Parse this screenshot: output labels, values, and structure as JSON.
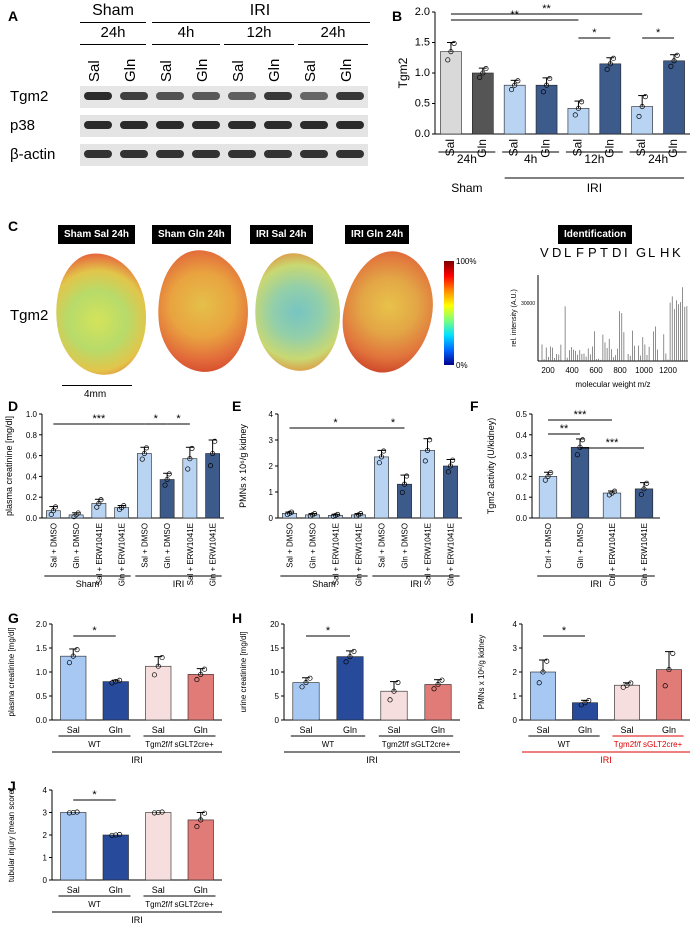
{
  "panel_labels": {
    "A": "A",
    "B": "B",
    "C": "C",
    "D": "D",
    "E": "E",
    "F": "F",
    "G": "G",
    "H": "H",
    "I": "I",
    "J": "J"
  },
  "blot": {
    "group_sham": "Sham",
    "group_iri": "IRI",
    "times": [
      "24h",
      "4h",
      "12h",
      "24h"
    ],
    "lanes": [
      "Sal",
      "Gln",
      "Sal",
      "Gln",
      "Sal",
      "Gln",
      "Sal",
      "Gln"
    ],
    "rows": [
      "Tgm2",
      "p38",
      "β-actin"
    ],
    "tgm2_intensity": [
      0.9,
      0.75,
      0.6,
      0.55,
      0.5,
      0.8,
      0.45,
      0.8
    ]
  },
  "msi": {
    "titles": [
      "Sham Sal 24h",
      "Sham Gln 24h",
      "IRI Sal 24h",
      "IRI Gln 24h",
      "Identification"
    ],
    "row_label": "Tgm2",
    "scale_bar": "4mm",
    "colorbar_top": "100%",
    "colorbar_bottom": "0%",
    "peptide": [
      "V",
      "D",
      "L",
      "F",
      "P",
      "T",
      "D",
      "I",
      "G",
      "L",
      "H",
      "K"
    ],
    "spec_ylabel": "rel. intensity (A.U.)",
    "spec_xlabel": "molecular weight m/z",
    "spec_y_tick": "30000",
    "spec_x_ticks": [
      "200",
      "400",
      "600",
      "800",
      "1000",
      "1200"
    ]
  },
  "chart_data": [
    {
      "id": "B",
      "type": "bar",
      "ylabel": "Tgm2",
      "ylim": [
        0,
        2.0
      ],
      "yticks": [
        "0.0",
        "0.5",
        "1.0",
        "1.5",
        "2.0"
      ],
      "categories": [
        "Sal",
        "Gln",
        "Sal",
        "Gln",
        "Sal",
        "Gln",
        "Sal",
        "Gln"
      ],
      "values": [
        1.35,
        1.0,
        0.8,
        0.8,
        0.42,
        1.15,
        0.45,
        1.2
      ],
      "errors": [
        0.15,
        0.08,
        0.08,
        0.12,
        0.12,
        0.1,
        0.18,
        0.1
      ],
      "groups": [
        {
          "label": "24h",
          "sub": "Sham"
        },
        {
          "label": "4h"
        },
        {
          "label": "12h",
          "sub": "IRI"
        },
        {
          "label": "24h"
        }
      ],
      "colors": [
        "#d9d9d9",
        "#555555",
        "#b9d3f3",
        "#3c5a8a",
        "#b9d3f3",
        "#3c5a8a",
        "#b9d3f3",
        "#3c5a8a"
      ],
      "sig": [
        "**",
        "**",
        "*",
        "*"
      ]
    },
    {
      "id": "D",
      "type": "bar",
      "ylabel": "plasma creatinine [mg/dl]",
      "ylim": [
        0,
        1.0
      ],
      "yticks": [
        "0.0",
        "0.2",
        "0.4",
        "0.6",
        "0.8",
        "1.0"
      ],
      "categories": [
        "Sal + DMSO",
        "Gln + DMSO",
        "Sal + ERW1041E",
        "Gln + ERW1041E",
        "Sal + DMSO",
        "Gln + DMSO",
        "Sal + ERW1041E",
        "Gln + ERW1041E"
      ],
      "values": [
        0.07,
        0.03,
        0.14,
        0.1,
        0.62,
        0.37,
        0.57,
        0.62
      ],
      "errors": [
        0.04,
        0.02,
        0.04,
        0.02,
        0.06,
        0.06,
        0.11,
        0.13
      ],
      "groups": [
        {
          "label": "Sham"
        },
        {
          "label": "IRI"
        }
      ],
      "sig": [
        "***",
        "*",
        "*"
      ]
    },
    {
      "id": "E",
      "type": "bar",
      "ylabel": "PMNs x 10⁶/g kidney",
      "ylim": [
        0,
        4
      ],
      "yticks": [
        "0",
        "1",
        "2",
        "3",
        "4"
      ],
      "categories": [
        "Sal + DMSO",
        "Gln + DMSO",
        "Sal + ERW1041E",
        "Gln + ERW1041E",
        "Sal + DMSO",
        "Gln + DMSO",
        "Sal + ERW1041E",
        "Gln + ERW1041E"
      ],
      "values": [
        0.18,
        0.12,
        0.1,
        0.12,
        2.35,
        1.3,
        2.6,
        2.0
      ],
      "errors": [
        0.05,
        0.05,
        0.04,
        0.05,
        0.25,
        0.35,
        0.45,
        0.25
      ],
      "groups": [
        {
          "label": "Sham"
        },
        {
          "label": "IRI"
        }
      ],
      "sig": [
        "*",
        "*"
      ]
    },
    {
      "id": "F",
      "type": "bar",
      "ylabel": "Tgm2 activity (U/kidney)",
      "ylim": [
        0,
        0.5
      ],
      "yticks": [
        "0.0",
        "0.1",
        "0.2",
        "0.3",
        "0.4",
        "0.5"
      ],
      "categories": [
        "Ctrl + DMSO",
        "Gln + DMSO",
        "Ctrl + ERW1041E",
        "Gln + ERW1041E"
      ],
      "values": [
        0.2,
        0.34,
        0.12,
        0.14
      ],
      "errors": [
        0.02,
        0.04,
        0.01,
        0.03
      ],
      "groups": [
        {
          "label": "IRI"
        }
      ],
      "sig": [
        "***",
        "**",
        "***"
      ]
    },
    {
      "id": "G",
      "type": "bar",
      "ylabel": "plasma creatinine [mg/dl]",
      "ylim": [
        0,
        2.0
      ],
      "yticks": [
        "0.0",
        "0.5",
        "1.0",
        "1.5",
        "2.0"
      ],
      "categories": [
        "Sal",
        "Gln",
        "Sal",
        "Gln"
      ],
      "values": [
        1.33,
        0.8,
        1.12,
        0.95
      ],
      "errors": [
        0.15,
        0.03,
        0.2,
        0.12
      ],
      "groups": [
        {
          "label": "WT"
        },
        {
          "label": "Tgm2f/f sGLT2cre+"
        }
      ],
      "bottom_label": "IRI",
      "sig": [
        "*"
      ]
    },
    {
      "id": "H",
      "type": "bar",
      "ylabel": "urine creatinine [mg/dl]",
      "ylim": [
        0,
        20
      ],
      "yticks": [
        "0",
        "5",
        "10",
        "15",
        "20"
      ],
      "categories": [
        "Sal",
        "Gln",
        "Sal",
        "Gln"
      ],
      "values": [
        7.8,
        13.2,
        6.0,
        7.4
      ],
      "errors": [
        1.0,
        1.2,
        2.0,
        1.0
      ],
      "groups": [
        {
          "label": "WT"
        },
        {
          "label": "Tgm2f/f sGLT2cre+"
        }
      ],
      "bottom_label": "IRI",
      "sig": [
        "*"
      ]
    },
    {
      "id": "I",
      "type": "bar",
      "ylabel": "PMNs x 10⁶/g kidney",
      "ylim": [
        0,
        4
      ],
      "yticks": [
        "0",
        "1",
        "2",
        "3",
        "4"
      ],
      "categories": [
        "Sal",
        "Gln",
        "Sal",
        "Gln"
      ],
      "values": [
        2.0,
        0.72,
        1.45,
        2.1
      ],
      "errors": [
        0.5,
        0.1,
        0.1,
        0.75
      ],
      "groups": [
        {
          "label": "WT"
        },
        {
          "label": "Tgm2f/f sGLT2cre+"
        }
      ],
      "bottom_label": "IRI",
      "sig": [
        "*"
      ]
    },
    {
      "id": "J",
      "type": "bar",
      "ylabel": "tubular injury [mean score]",
      "ylim": [
        0,
        4
      ],
      "yticks": [
        "0",
        "1",
        "2",
        "3",
        "4"
      ],
      "categories": [
        "Sal",
        "Gln",
        "Sal",
        "Gln"
      ],
      "values": [
        3.0,
        2.0,
        3.0,
        2.67
      ],
      "errors": [
        0,
        0,
        0,
        0.33
      ],
      "groups": [
        {
          "label": "WT"
        },
        {
          "label": "Tgm2f/f sGLT2cre+"
        }
      ],
      "bottom_label": "IRI",
      "sig": [
        "*"
      ]
    }
  ]
}
